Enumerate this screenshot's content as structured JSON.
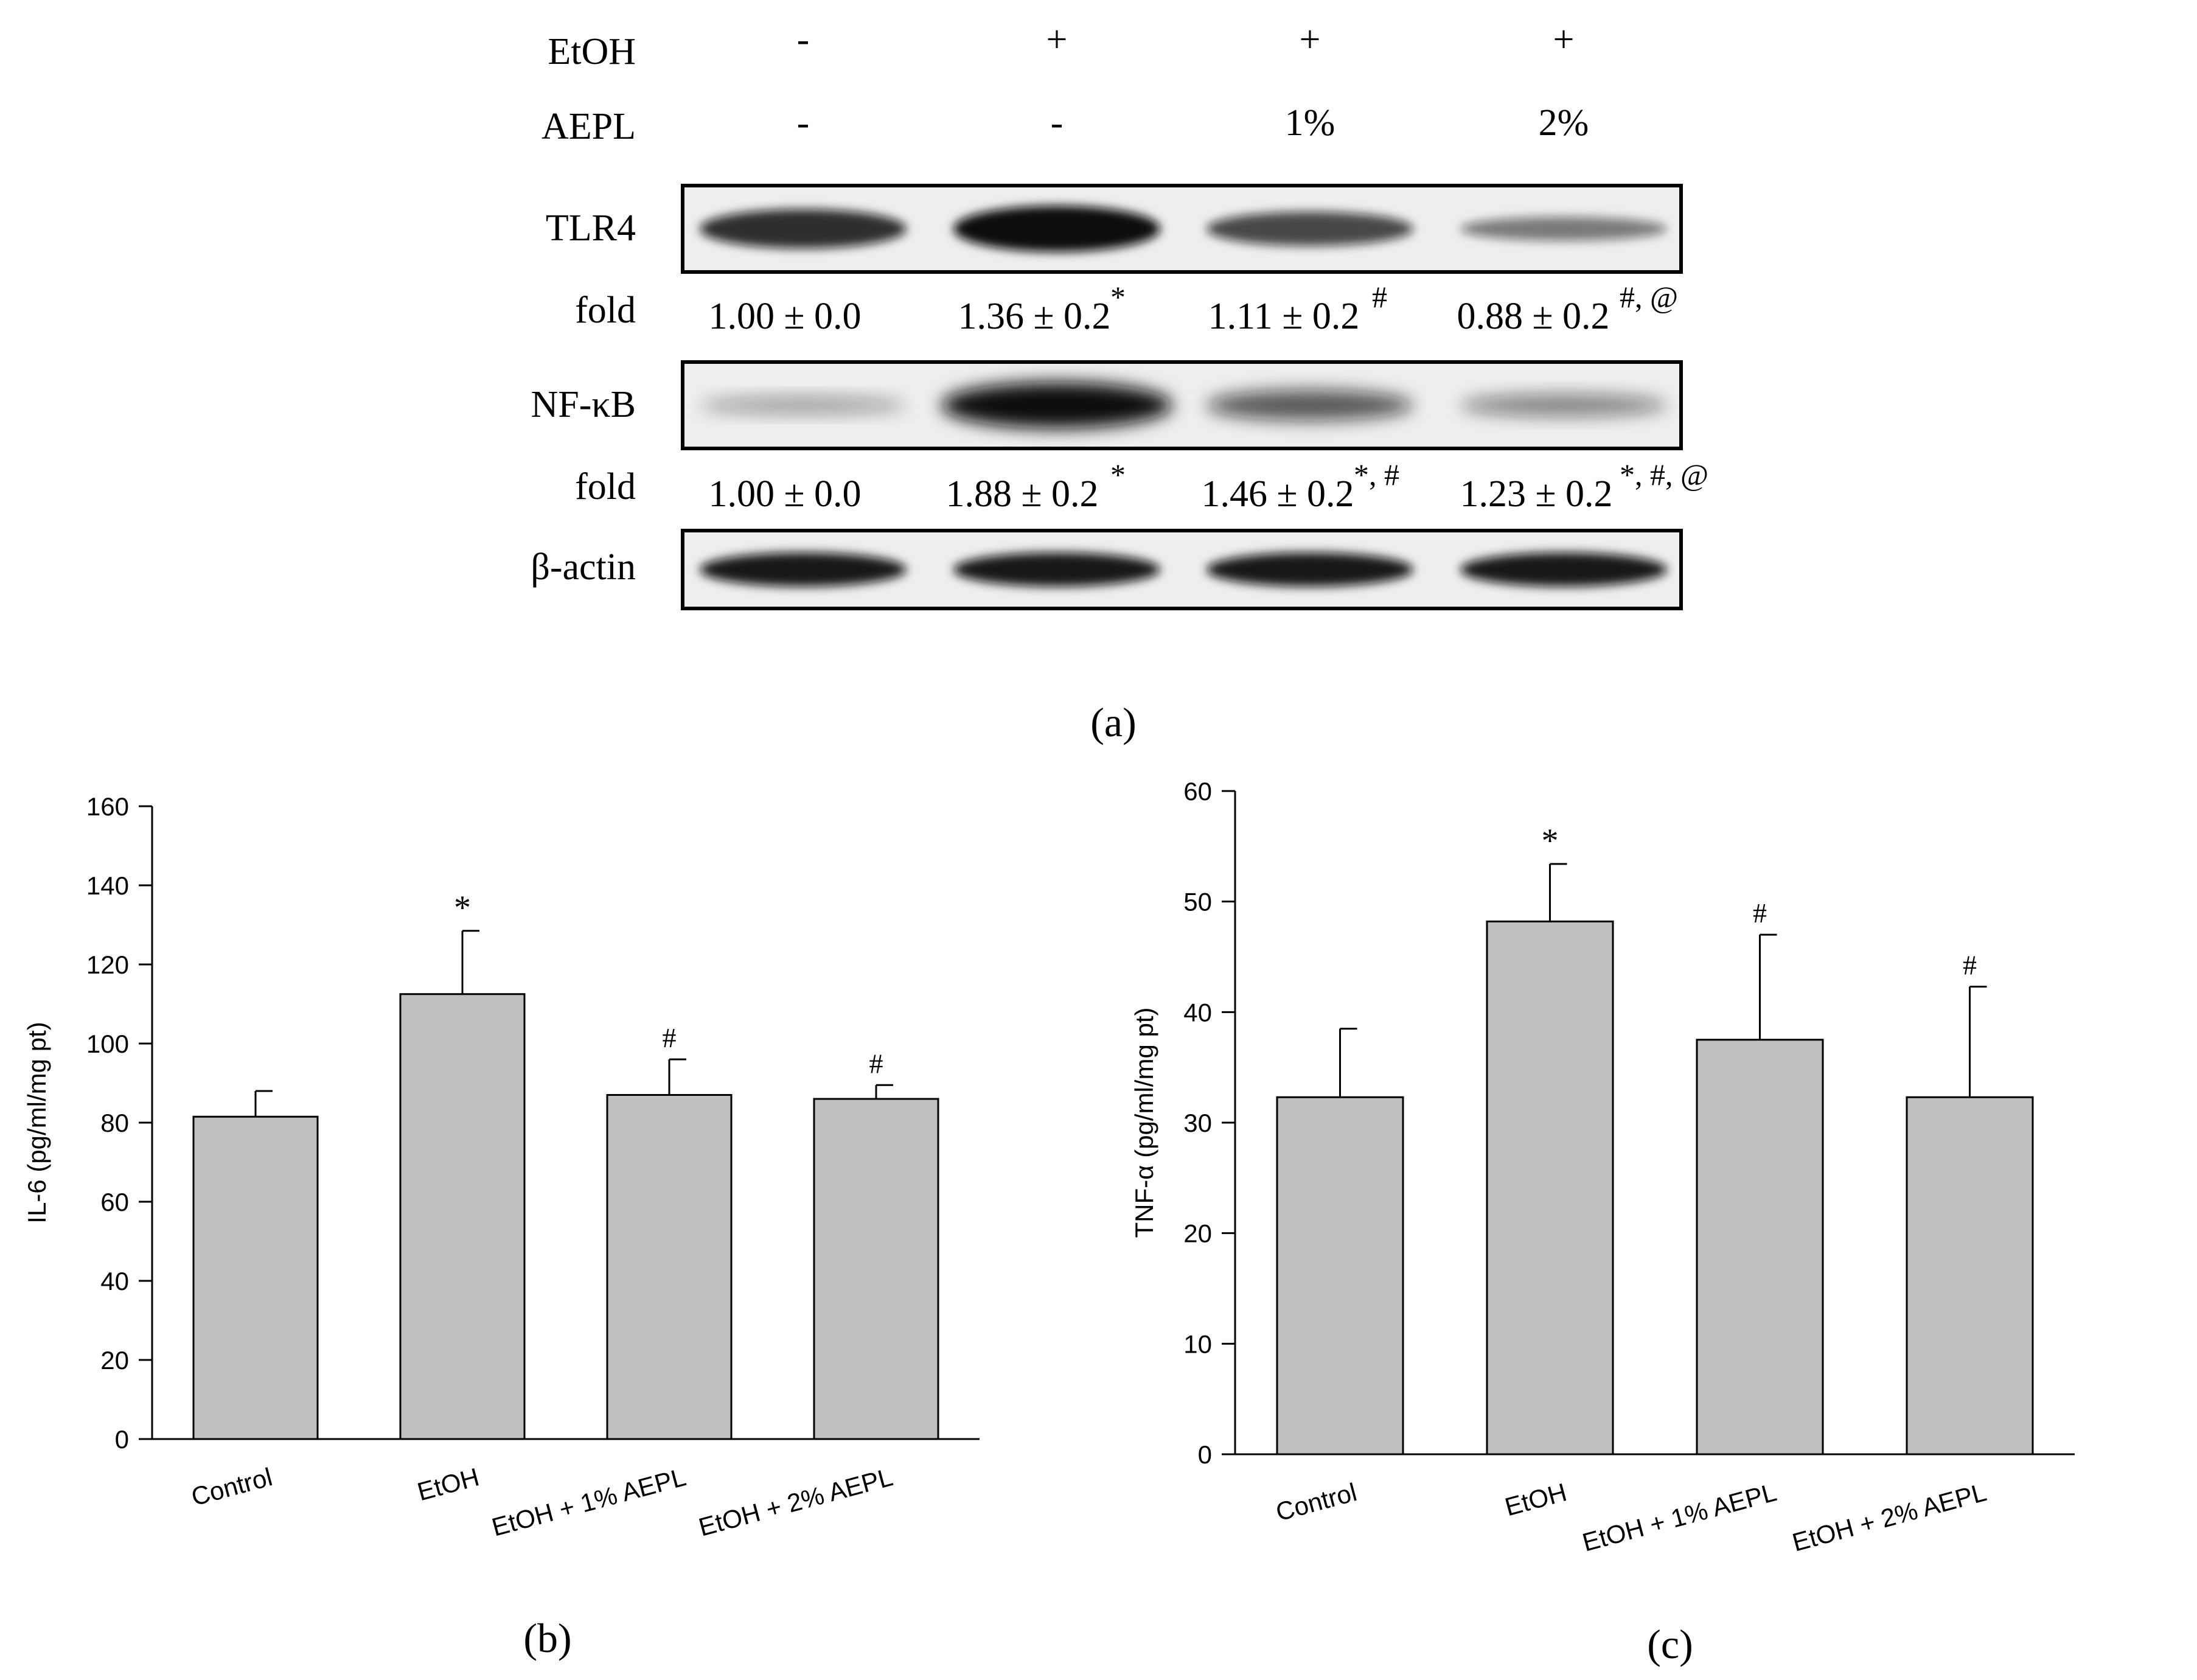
{
  "blot": {
    "treatment_rows": [
      {
        "label": "EtOH",
        "values": [
          "-",
          "+",
          "+",
          "+"
        ]
      },
      {
        "label": "AEPL",
        "values": [
          "-",
          "-",
          "1%",
          "2%"
        ]
      }
    ],
    "bands": [
      {
        "label": "TLR4",
        "fold_label": "fold",
        "fold": [
          {
            "text": "1.00 ± 0.0",
            "sig": ""
          },
          {
            "text": "1.36 ± 0.2",
            "sig": "*"
          },
          {
            "text": "1.11 ± 0.2",
            "sig": "#"
          },
          {
            "text": "0.88 ± 0.2",
            "sig": "#, @"
          }
        ],
        "intensity": [
          0.8,
          1.0,
          0.65,
          0.35
        ]
      },
      {
        "label": "NF-κB",
        "fold_label": "fold",
        "fold": [
          {
            "text": "1.00 ± 0.0",
            "sig": ""
          },
          {
            "text": "1.88 ± 0.2",
            "sig": "*"
          },
          {
            "text": "1.46 ± 0.2",
            "sig": "*, #"
          },
          {
            "text": "1.23 ± 0.2",
            "sig": "*, #, @"
          }
        ],
        "intensity": [
          0.15,
          1.0,
          0.55,
          0.3
        ]
      },
      {
        "label": "β-actin",
        "fold_label": "",
        "fold": [],
        "intensity": [
          1.0,
          1.0,
          1.0,
          1.0
        ]
      }
    ],
    "panel_label": "(a)"
  },
  "chart_data": [
    {
      "type": "bar",
      "panel_label": "(b)",
      "categories": [
        "Control",
        "EtOH",
        "EtOH + 1% AEPL",
        "EtOH + 2% AEPL"
      ],
      "values": [
        81.5,
        112.5,
        87,
        86
      ],
      "errors": [
        6.5,
        16,
        9,
        3.5
      ],
      "annotations": [
        "",
        "*",
        "#",
        "#"
      ],
      "xlabel": "",
      "ylabel": "IL-6 (pg/ml/mg pt)",
      "ylim": [
        0,
        160
      ],
      "yticks": [
        0,
        20,
        40,
        60,
        80,
        100,
        120,
        140,
        160
      ],
      "bar_color": "#c0c0c0",
      "grid": false
    },
    {
      "type": "bar",
      "panel_label": "(c)",
      "categories": [
        "Control",
        "EtOH",
        "EtOH + 1% AEPL",
        "EtOH + 2% AEPL"
      ],
      "values": [
        32.3,
        48.2,
        37.5,
        32.3
      ],
      "errors": [
        6.2,
        5.2,
        9.5,
        10
      ],
      "annotations": [
        "",
        "*",
        "#",
        "#"
      ],
      "xlabel": "",
      "ylabel": "TNF-α (pg/ml/mg pt)",
      "ylim": [
        0,
        60
      ],
      "yticks": [
        0,
        10,
        20,
        30,
        40,
        50,
        60
      ],
      "bar_color": "#c0c0c0",
      "grid": false
    }
  ]
}
